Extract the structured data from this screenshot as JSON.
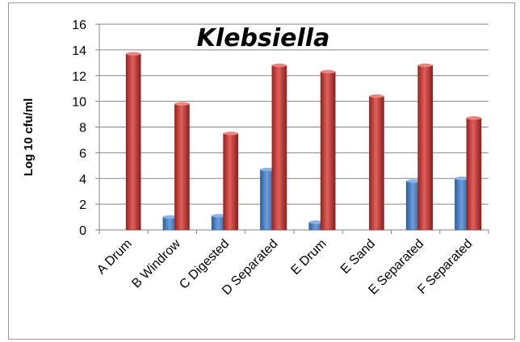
{
  "chart_data": {
    "type": "bar",
    "title": "Klebsiella",
    "ylabel": "Log 10 cfu/ml",
    "xlabel": "",
    "ylim": [
      0,
      16
    ],
    "yticks": [
      "0",
      "2",
      "4",
      "6",
      "8",
      "10",
      "12",
      "14",
      "16"
    ],
    "grid": true,
    "categories": [
      "A Drum",
      "B Windrow",
      "C Digested",
      "D Separated",
      "E Drum",
      "E Sand",
      "E Separated",
      "F Separated"
    ],
    "series": [
      {
        "values": [
          0,
          1.0,
          1.1,
          4.7,
          0.6,
          0,
          3.8,
          4.0
        ],
        "color": "#4a7ebb"
      },
      {
        "values": [
          13.7,
          9.8,
          7.5,
          12.8,
          12.3,
          10.4,
          12.8,
          8.7
        ],
        "color": "#be3a37"
      }
    ]
  }
}
